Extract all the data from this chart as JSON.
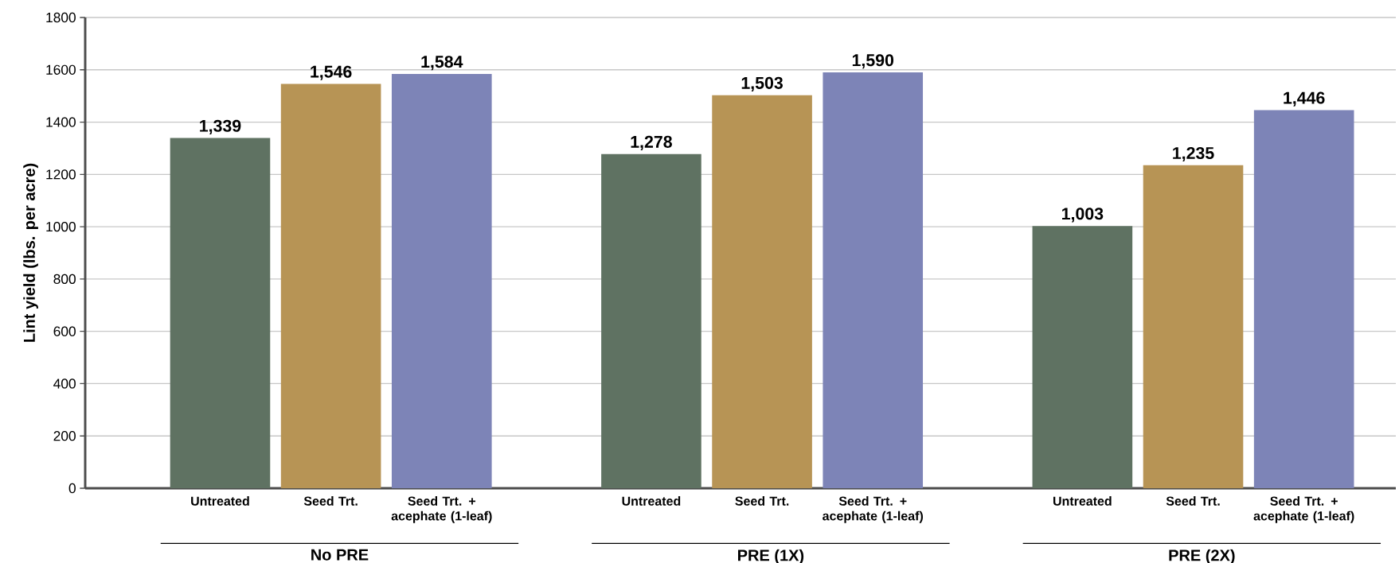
{
  "chart_data": {
    "type": "bar",
    "ylabel": "Lint yield (lbs. per acre)",
    "categories": [
      "No PRE",
      "PRE (1X)",
      "PRE (2X)"
    ],
    "ylim": [
      0,
      1800
    ],
    "yticks": [
      0,
      200,
      400,
      600,
      800,
      1000,
      1200,
      1400,
      1600,
      1800
    ],
    "grid": "y",
    "series": [
      {
        "name": "Untreated",
        "color": "#5f7262",
        "values": [
          1339,
          1278,
          1003
        ],
        "value_labels": [
          "1,339",
          "1,278",
          "1,003"
        ]
      },
      {
        "name": "Seed Trt.",
        "color": "#b79455",
        "values": [
          1546,
          1503,
          1235
        ],
        "value_labels": [
          "1,546",
          "1,503",
          "1,235"
        ]
      },
      {
        "name": "Seed Trt. + acephate (1-leaf)",
        "color": "#7d84b7",
        "values": [
          1584,
          1590,
          1446
        ],
        "value_labels": [
          "1,584",
          "1,590",
          "1,446"
        ]
      }
    ]
  }
}
